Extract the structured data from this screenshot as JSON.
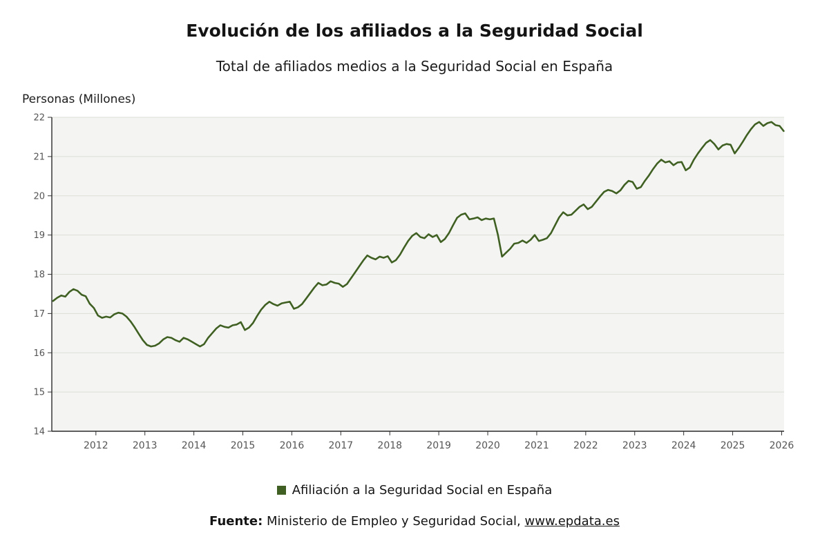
{
  "header": {
    "title": "Evolución de los afiliados a la Seguridad Social",
    "subtitle": "Total de afiliados medios a la Seguridad Social en España"
  },
  "chart_data": {
    "type": "line",
    "title": "Evolución de los afiliados a la Seguridad Social",
    "subtitle": "Total de afiliados medios a la Seguridad Social en España",
    "y_axis_title": "Personas (Millones)",
    "xlabel": "",
    "ylabel": "Personas (Millones)",
    "x_range": [
      2011.1,
      2026.05
    ],
    "y_range": [
      14,
      22
    ],
    "x_ticks": [
      2012,
      2013,
      2014,
      2015,
      2016,
      2017,
      2018,
      2019,
      2020,
      2021,
      2022,
      2023,
      2024,
      2025,
      2026
    ],
    "y_ticks": [
      14,
      15,
      16,
      17,
      18,
      19,
      20,
      21,
      22
    ],
    "grid": "horizontal",
    "legend_position": "bottom",
    "plot_background": "#f4f5f2",
    "gridline_color": "#dbded7",
    "series": [
      {
        "name": "Afiliación a la Seguridad Social en España",
        "color": "#3f6022",
        "frequency": "monthly",
        "start_year": 2011,
        "start_month": 2,
        "unit": "millions of persons",
        "values": [
          17.32,
          17.4,
          17.46,
          17.43,
          17.55,
          17.62,
          17.58,
          17.48,
          17.44,
          17.25,
          17.14,
          16.95,
          16.89,
          16.92,
          16.9,
          16.98,
          17.02,
          17.0,
          16.92,
          16.8,
          16.65,
          16.48,
          16.32,
          16.2,
          16.16,
          16.18,
          16.24,
          16.34,
          16.4,
          16.38,
          16.32,
          16.28,
          16.38,
          16.34,
          16.28,
          16.22,
          16.16,
          16.22,
          16.38,
          16.5,
          16.62,
          16.7,
          16.66,
          16.64,
          16.7,
          16.72,
          16.78,
          16.58,
          16.64,
          16.76,
          16.94,
          17.1,
          17.22,
          17.3,
          17.24,
          17.2,
          17.26,
          17.28,
          17.3,
          17.12,
          17.16,
          17.24,
          17.38,
          17.52,
          17.66,
          17.78,
          17.72,
          17.74,
          17.82,
          17.78,
          17.76,
          17.68,
          17.75,
          17.9,
          18.05,
          18.2,
          18.35,
          18.48,
          18.42,
          18.38,
          18.45,
          18.42,
          18.46,
          18.3,
          18.36,
          18.5,
          18.68,
          18.85,
          18.98,
          19.05,
          18.95,
          18.92,
          19.02,
          18.95,
          19.0,
          18.82,
          18.9,
          19.05,
          19.25,
          19.44,
          19.52,
          19.55,
          19.4,
          19.42,
          19.45,
          19.38,
          19.42,
          19.4,
          19.42,
          19.0,
          18.45,
          18.55,
          18.65,
          18.78,
          18.8,
          18.86,
          18.8,
          18.88,
          19.0,
          18.85,
          18.88,
          18.92,
          19.05,
          19.25,
          19.45,
          19.58,
          19.5,
          19.52,
          19.62,
          19.72,
          19.78,
          19.66,
          19.72,
          19.85,
          19.98,
          20.1,
          20.15,
          20.12,
          20.06,
          20.14,
          20.28,
          20.38,
          20.35,
          20.18,
          20.22,
          20.38,
          20.52,
          20.68,
          20.82,
          20.92,
          20.85,
          20.88,
          20.78,
          20.85,
          20.86,
          20.65,
          20.72,
          20.92,
          21.08,
          21.22,
          21.35,
          21.42,
          21.32,
          21.18,
          21.28,
          21.32,
          21.3,
          21.08,
          21.22,
          21.38,
          21.55,
          21.7,
          21.82,
          21.88,
          21.78,
          21.85,
          21.88,
          21.8,
          21.78,
          21.65
        ]
      }
    ]
  },
  "legend": {
    "marker_color": "#3f6022",
    "label": "Afiliación a la Seguridad Social en España"
  },
  "source": {
    "prefix": "Fuente:",
    "text": " Ministerio de Empleo y Seguridad Social, ",
    "link": "www.epdata.es"
  }
}
